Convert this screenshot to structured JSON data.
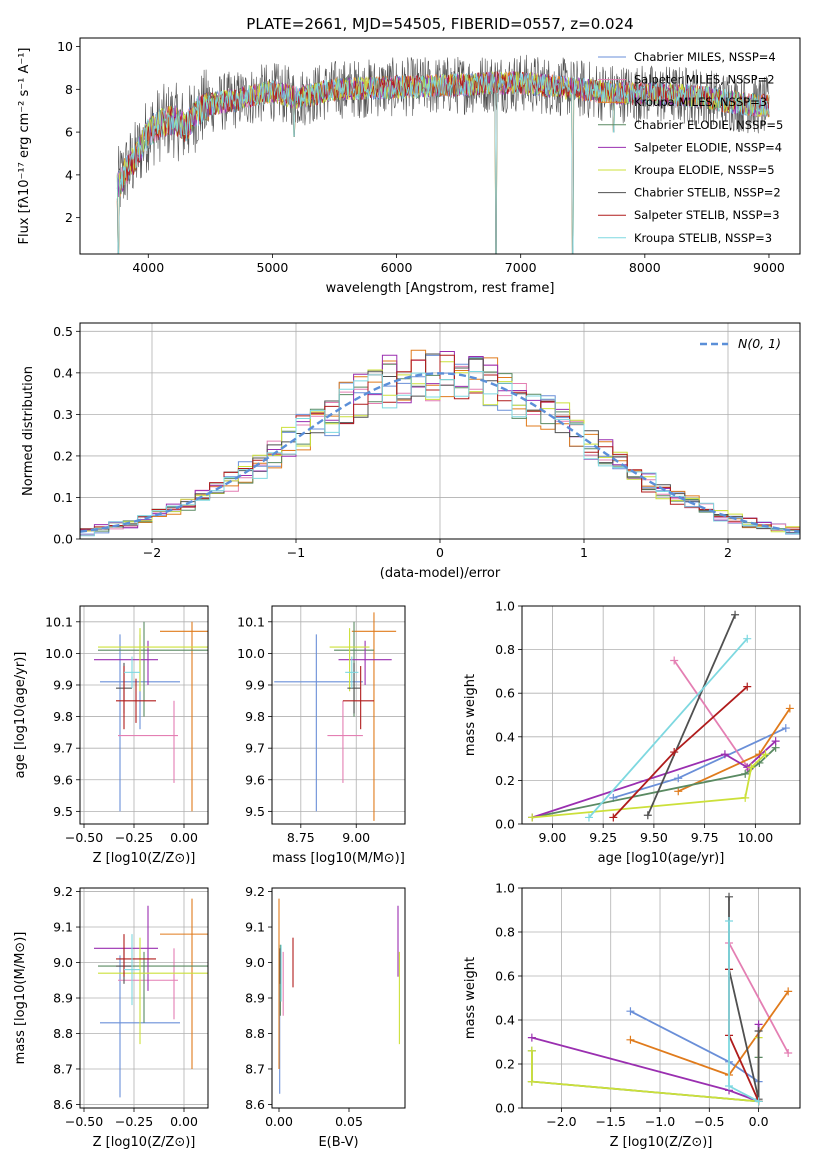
{
  "figure_title": "PLATE=2661, MJD=54505, FIBERID=0557, z=0.024",
  "colors": {
    "chabrier_miles": "#6a8fd8",
    "salpeter_miles": "#e47fb3",
    "kroupa_miles": "#e07b1c",
    "chabrier_elodie": "#5a8a62",
    "salpeter_elodie": "#9a2fb0",
    "kroupa_elodie": "#cce03a",
    "chabrier_stelib": "#505050",
    "salpeter_stelib": "#b01c1c",
    "kroupa_stelib": "#7ed8e0",
    "normal": "#5b8fd8"
  },
  "chart_data": [
    {
      "id": "spectrum",
      "type": "line",
      "xlabel": "wavelength [Angstrom, rest frame]",
      "ylabel": "Flux [fλ10⁻¹⁷ erg cm⁻² s⁻¹ A⁻¹]",
      "xlim": [
        3450,
        9250
      ],
      "ylim": [
        0.3,
        10.4
      ],
      "xticks": [
        4000,
        5000,
        6000,
        7000,
        8000,
        9000
      ],
      "yticks": [
        2,
        4,
        6,
        8,
        10
      ],
      "legend_position": "upper-right",
      "series": [
        {
          "name": "Chabrier MILES, NSSP=4",
          "color": "chabrier_miles"
        },
        {
          "name": "Salpeter MILES, NSSP=2",
          "color": "salpeter_miles"
        },
        {
          "name": "Kroupa MILES, NSSP=3",
          "color": "kroupa_miles"
        },
        {
          "name": "Chabrier ELODIE, NSSP=5",
          "color": "chabrier_elodie"
        },
        {
          "name": "Salpeter ELODIE, NSSP=4",
          "color": "salpeter_elodie"
        },
        {
          "name": "Kroupa ELODIE, NSSP=5",
          "color": "kroupa_elodie"
        },
        {
          "name": "Chabrier STELIB, NSSP=2",
          "color": "chabrier_stelib"
        },
        {
          "name": "Salpeter STELIB, NSSP=3",
          "color": "salpeter_stelib"
        },
        {
          "name": "Kroupa STELIB, NSSP=3",
          "color": "kroupa_stelib"
        }
      ],
      "continuum": [
        [
          3750,
          3.4
        ],
        [
          3800,
          4.0
        ],
        [
          3900,
          4.8
        ],
        [
          4000,
          6.0
        ],
        [
          4100,
          6.4
        ],
        [
          4200,
          6.6
        ],
        [
          4300,
          6.2
        ],
        [
          4400,
          7.0
        ],
        [
          4500,
          7.3
        ],
        [
          4700,
          7.5
        ],
        [
          5000,
          7.9
        ],
        [
          5200,
          7.6
        ],
        [
          5500,
          8.0
        ],
        [
          6000,
          8.1
        ],
        [
          6500,
          8.2
        ],
        [
          6800,
          8.3
        ],
        [
          7000,
          8.3
        ],
        [
          7500,
          8.0
        ],
        [
          7800,
          7.8
        ],
        [
          8000,
          7.8
        ],
        [
          8400,
          7.7
        ],
        [
          8700,
          7.4
        ],
        [
          9000,
          7.2
        ]
      ],
      "absorption_dips": [
        {
          "x": 3760,
          "y": 0.3
        },
        {
          "x": 5175,
          "y": 5.8
        },
        {
          "x": 6800,
          "y": 0.3
        },
        {
          "x": 7420,
          "y": 0.3
        },
        {
          "x": 7750,
          "y": 6.0
        }
      ]
    },
    {
      "id": "residuals",
      "type": "line",
      "xlabel": "(data-model)/error",
      "ylabel": "Normed distribution",
      "xlim": [
        -2.5,
        2.5
      ],
      "ylim": [
        0,
        0.52
      ],
      "xticks": [
        -2,
        -1,
        0,
        1,
        2
      ],
      "yticks": [
        0.0,
        0.1,
        0.2,
        0.3,
        0.4,
        0.5
      ],
      "grid": true,
      "legend_position": "upper-right",
      "normal_label": "N(0, 1)",
      "bins": 50
    },
    {
      "id": "age_vs_Z",
      "type": "scatter",
      "xlabel": "Z [log10(Z/Z⊙)]",
      "ylabel": "age  [log10(age/yr)]",
      "xlim": [
        -0.52,
        0.12
      ],
      "ylim": [
        9.46,
        10.15
      ],
      "xticks": [
        -0.5,
        -0.25,
        0.0
      ],
      "yticks": [
        9.5,
        9.6,
        9.7,
        9.8,
        9.9,
        10.0,
        10.1
      ],
      "grid": true,
      "points": [
        {
          "color": "chabrier_miles",
          "x": -0.22,
          "xerr": 0.2,
          "y": 9.91,
          "yerr": 0.15
        },
        {
          "color": "chabrier_miles",
          "x": -0.32,
          "xerr": 0.01,
          "y": 9.78,
          "yerr": 0.28
        },
        {
          "color": "salpeter_miles",
          "x": -0.18,
          "xerr": 0.15,
          "y": 9.74,
          "yerr": 0.01
        },
        {
          "color": "salpeter_miles",
          "x": -0.05,
          "xerr": 0.01,
          "y": 9.72,
          "yerr": 0.13
        },
        {
          "color": "kroupa_miles",
          "x": 0.0,
          "xerr": 0.12,
          "y": 10.07,
          "yerr": 0.01
        },
        {
          "color": "kroupa_miles",
          "x": 0.04,
          "xerr": 0.01,
          "y": 9.8,
          "yerr": 0.3
        },
        {
          "color": "chabrier_elodie",
          "x": -0.15,
          "xerr": 0.28,
          "y": 10.01,
          "yerr": 0.01
        },
        {
          "color": "chabrier_elodie",
          "x": -0.2,
          "xerr": 0.01,
          "y": 9.95,
          "yerr": 0.15
        },
        {
          "color": "salpeter_elodie",
          "x": -0.29,
          "xerr": 0.16,
          "y": 9.98,
          "yerr": 0.01
        },
        {
          "color": "salpeter_elodie",
          "x": -0.18,
          "xerr": 0.01,
          "y": 9.97,
          "yerr": 0.07
        },
        {
          "color": "kroupa_elodie",
          "x": -0.15,
          "xerr": 0.28,
          "y": 10.02,
          "yerr": 0.01
        },
        {
          "color": "kroupa_elodie",
          "x": -0.22,
          "xerr": 0.01,
          "y": 9.98,
          "yerr": 0.1
        },
        {
          "color": "chabrier_stelib",
          "x": -0.3,
          "xerr": 0.04,
          "y": 9.89,
          "yerr": 0.08
        },
        {
          "color": "salpeter_stelib",
          "x": -0.24,
          "xerr": 0.1,
          "y": 9.85,
          "yerr": 0.07
        },
        {
          "color": "salpeter_stelib",
          "x": -0.3,
          "xerr": 0.01,
          "y": 9.86,
          "yerr": 0.1
        },
        {
          "color": "kroupa_stelib",
          "x": -0.26,
          "xerr": 0.04,
          "y": 9.94,
          "yerr": 0.05
        }
      ]
    },
    {
      "id": "age_vs_mass",
      "type": "scatter",
      "xlabel": "mass [log10(M/M⊙)]",
      "xlim": [
        8.62,
        9.22
      ],
      "ylim": [
        9.46,
        10.15
      ],
      "xticks": [
        8.75,
        9.0
      ],
      "yticks": [
        9.5,
        9.6,
        9.7,
        9.8,
        9.9,
        10.0,
        10.1
      ],
      "grid": true,
      "points": [
        {
          "color": "chabrier_miles",
          "x": 8.83,
          "xerr": 0.2,
          "y": 9.91,
          "yerr": 0.01
        },
        {
          "color": "chabrier_miles",
          "x": 8.82,
          "xerr": 0.01,
          "y": 9.78,
          "yerr": 0.28
        },
        {
          "color": "salpeter_miles",
          "x": 8.95,
          "xerr": 0.08,
          "y": 9.74,
          "yerr": 0.01
        },
        {
          "color": "salpeter_miles",
          "x": 8.94,
          "xerr": 0.01,
          "y": 9.72,
          "yerr": 0.13
        },
        {
          "color": "kroupa_miles",
          "x": 9.08,
          "xerr": 0.1,
          "y": 10.07,
          "yerr": 0.01
        },
        {
          "color": "kroupa_miles",
          "x": 9.08,
          "xerr": 0.01,
          "y": 9.8,
          "yerr": 0.33
        },
        {
          "color": "chabrier_elodie",
          "x": 8.99,
          "xerr": 0.09,
          "y": 10.01,
          "yerr": 0.01
        },
        {
          "color": "chabrier_elodie",
          "x": 8.99,
          "xerr": 0.01,
          "y": 9.95,
          "yerr": 0.15
        },
        {
          "color": "salpeter_elodie",
          "x": 9.04,
          "xerr": 0.12,
          "y": 9.98,
          "yerr": 0.01
        },
        {
          "color": "salpeter_elodie",
          "x": 9.04,
          "xerr": 0.01,
          "y": 9.97,
          "yerr": 0.07
        },
        {
          "color": "kroupa_elodie",
          "x": 8.97,
          "xerr": 0.09,
          "y": 10.02,
          "yerr": 0.01
        },
        {
          "color": "kroupa_elodie",
          "x": 8.97,
          "xerr": 0.01,
          "y": 9.98,
          "yerr": 0.1
        },
        {
          "color": "chabrier_stelib",
          "x": 8.99,
          "xerr": 0.03,
          "y": 9.89,
          "yerr": 0.08
        },
        {
          "color": "salpeter_stelib",
          "x": 9.01,
          "xerr": 0.07,
          "y": 9.85,
          "yerr": 0.01
        },
        {
          "color": "salpeter_stelib",
          "x": 9.02,
          "xerr": 0.01,
          "y": 9.86,
          "yerr": 0.1
        },
        {
          "color": "kroupa_stelib",
          "x": 8.98,
          "xerr": 0.03,
          "y": 9.94,
          "yerr": 0.05
        }
      ]
    },
    {
      "id": "weight_vs_age",
      "type": "line",
      "xlabel": "age  [log10(age/yr)]",
      "ylabel": "mass weight",
      "xlim": [
        8.85,
        10.22
      ],
      "ylim": [
        0.0,
        1.0
      ],
      "xticks": [
        9.0,
        9.25,
        9.5,
        9.75,
        10.0
      ],
      "yticks": [
        0.0,
        0.2,
        0.4,
        0.6,
        0.8,
        1.0
      ],
      "grid": true,
      "series": [
        {
          "color": "chabrier_miles",
          "x": [
            9.3,
            9.62,
            10.15
          ],
          "y": [
            0.12,
            0.21,
            0.44
          ]
        },
        {
          "color": "salpeter_miles",
          "x": [
            9.6,
            9.97
          ],
          "y": [
            0.75,
            0.25
          ]
        },
        {
          "color": "kroupa_miles",
          "x": [
            9.62,
            10.02,
            10.17
          ],
          "y": [
            0.15,
            0.32,
            0.53
          ]
        },
        {
          "color": "chabrier_elodie",
          "x": [
            8.9,
            9.95,
            10.02,
            10.1
          ],
          "y": [
            0.03,
            0.23,
            0.28,
            0.35
          ]
        },
        {
          "color": "salpeter_elodie",
          "x": [
            8.9,
            9.85,
            9.96,
            10.1
          ],
          "y": [
            0.03,
            0.32,
            0.26,
            0.38
          ]
        },
        {
          "color": "kroupa_elodie",
          "x": [
            8.9,
            9.95,
            9.98,
            10.05
          ],
          "y": [
            0.03,
            0.12,
            0.26,
            0.32
          ]
        },
        {
          "color": "chabrier_stelib",
          "x": [
            9.47,
            9.9
          ],
          "y": [
            0.04,
            0.96
          ]
        },
        {
          "color": "salpeter_stelib",
          "x": [
            9.3,
            9.6,
            9.96
          ],
          "y": [
            0.03,
            0.33,
            0.63
          ]
        },
        {
          "color": "kroupa_stelib",
          "x": [
            9.18,
            9.96
          ],
          "y": [
            0.03,
            0.85
          ]
        }
      ]
    },
    {
      "id": "mass_vs_Z",
      "type": "scatter",
      "xlabel": "Z [log10(Z/Z⊙)]",
      "ylabel": "mass [log10(M/M⊙)]",
      "xlim": [
        -0.52,
        0.12
      ],
      "ylim": [
        8.59,
        9.21
      ],
      "xticks": [
        -0.5,
        -0.25,
        0.0
      ],
      "yticks": [
        8.6,
        8.7,
        8.8,
        8.9,
        9.0,
        9.1,
        9.2
      ],
      "grid": true,
      "points": [
        {
          "color": "chabrier_miles",
          "x": -0.22,
          "xerr": 0.2,
          "y": 8.83,
          "yerr": 0.01
        },
        {
          "color": "chabrier_miles",
          "x": -0.32,
          "xerr": 0.01,
          "y": 8.82,
          "yerr": 0.2
        },
        {
          "color": "salpeter_miles",
          "x": -0.18,
          "xerr": 0.15,
          "y": 8.95,
          "yerr": 0.01
        },
        {
          "color": "salpeter_miles",
          "x": -0.05,
          "xerr": 0.01,
          "y": 8.94,
          "yerr": 0.1
        },
        {
          "color": "kroupa_miles",
          "x": 0.0,
          "xerr": 0.12,
          "y": 9.08,
          "yerr": 0.01
        },
        {
          "color": "kroupa_miles",
          "x": 0.04,
          "xerr": 0.01,
          "y": 8.94,
          "yerr": 0.24
        },
        {
          "color": "chabrier_elodie",
          "x": -0.15,
          "xerr": 0.28,
          "y": 8.99,
          "yerr": 0.01
        },
        {
          "color": "chabrier_elodie",
          "x": -0.2,
          "xerr": 0.01,
          "y": 8.93,
          "yerr": 0.1
        },
        {
          "color": "salpeter_elodie",
          "x": -0.29,
          "xerr": 0.16,
          "y": 9.04,
          "yerr": 0.01
        },
        {
          "color": "salpeter_elodie",
          "x": -0.18,
          "xerr": 0.01,
          "y": 9.04,
          "yerr": 0.12
        },
        {
          "color": "kroupa_elodie",
          "x": -0.15,
          "xerr": 0.28,
          "y": 8.97,
          "yerr": 0.01
        },
        {
          "color": "kroupa_elodie",
          "x": -0.22,
          "xerr": 0.01,
          "y": 8.92,
          "yerr": 0.15
        },
        {
          "color": "chabrier_stelib",
          "x": -0.3,
          "xerr": 0.04,
          "y": 8.99,
          "yerr": 0.05
        },
        {
          "color": "salpeter_stelib",
          "x": -0.24,
          "xerr": 0.1,
          "y": 9.01,
          "yerr": 0.01
        },
        {
          "color": "salpeter_stelib",
          "x": -0.3,
          "xerr": 0.01,
          "y": 9.02,
          "yerr": 0.06
        },
        {
          "color": "kroupa_stelib",
          "x": -0.26,
          "xerr": 0.04,
          "y": 8.98,
          "yerr": 0.1
        }
      ]
    },
    {
      "id": "mass_vs_ebv",
      "type": "scatter",
      "xlabel": "E(B-V)",
      "xlim": [
        -0.005,
        0.09
      ],
      "ylim": [
        8.59,
        9.21
      ],
      "xticks": [
        0.0,
        0.05
      ],
      "yticks": [
        8.6,
        8.7,
        8.8,
        8.9,
        9.0,
        9.1,
        9.2
      ],
      "points": [
        {
          "color": "chabrier_miles",
          "x": 0.0005,
          "xerr": 0,
          "y": 8.83,
          "yerr": 0.2
        },
        {
          "color": "salpeter_miles",
          "x": 0.003,
          "xerr": 0,
          "y": 8.94,
          "yerr": 0.09
        },
        {
          "color": "kroupa_miles",
          "x": 0.0,
          "xerr": 0,
          "y": 8.94,
          "yerr": 0.24
        },
        {
          "color": "chabrier_elodie",
          "x": 0.001,
          "xerr": 0,
          "y": 8.95,
          "yerr": 0.1
        },
        {
          "color": "salpeter_elodie",
          "x": 0.085,
          "xerr": 0,
          "y": 9.06,
          "yerr": 0.1
        },
        {
          "color": "kroupa_elodie",
          "x": 0.086,
          "xerr": 0,
          "y": 8.9,
          "yerr": 0.13
        },
        {
          "color": "chabrier_stelib",
          "x": 0.0008,
          "xerr": 0,
          "y": 8.99,
          "yerr": 0.05
        },
        {
          "color": "salpeter_stelib",
          "x": 0.01,
          "xerr": 0,
          "y": 9.0,
          "yerr": 0.07
        },
        {
          "color": "kroupa_stelib",
          "x": 0.0015,
          "xerr": 0,
          "y": 8.97,
          "yerr": 0.08
        }
      ]
    },
    {
      "id": "weight_vs_Z",
      "type": "line",
      "xlabel": "Z [log10(Z/Z⊙)]",
      "ylabel": "mass weight",
      "xlim": [
        -2.4,
        0.42
      ],
      "ylim": [
        0.0,
        1.0
      ],
      "xticks": [
        -2.0,
        -1.5,
        -1.0,
        -0.5,
        0.0
      ],
      "yticks": [
        0.0,
        0.2,
        0.4,
        0.6,
        0.8,
        1.0
      ],
      "grid": true,
      "series": [
        {
          "color": "chabrier_miles",
          "x": [
            -1.3,
            -0.3,
            0.0
          ],
          "y": [
            0.44,
            0.21,
            0.12
          ]
        },
        {
          "color": "salpeter_miles",
          "x": [
            -0.3,
            0.3
          ],
          "y": [
            0.75,
            0.25
          ]
        },
        {
          "color": "kroupa_miles",
          "x": [
            -1.3,
            -0.3,
            0.3
          ],
          "y": [
            0.31,
            0.15,
            0.53
          ]
        },
        {
          "color": "chabrier_elodie",
          "x": [
            -2.3,
            -2.3,
            0.0,
            0.0
          ],
          "y": [
            0.26,
            0.12,
            0.03,
            0.23
          ]
        },
        {
          "color": "salpeter_elodie",
          "x": [
            -2.3,
            -0.3,
            0.0,
            0.0
          ],
          "y": [
            0.32,
            0.08,
            0.03,
            0.38
          ]
        },
        {
          "color": "kroupa_elodie",
          "x": [
            -2.3,
            -2.3,
            0.0,
            0.0
          ],
          "y": [
            0.26,
            0.12,
            0.03,
            0.32
          ]
        },
        {
          "color": "chabrier_stelib",
          "x": [
            -0.3,
            -0.3,
            0.0,
            0.0
          ],
          "y": [
            0.96,
            0.63,
            0.04,
            0.35
          ]
        },
        {
          "color": "salpeter_stelib",
          "x": [
            -0.3,
            -0.3,
            0.0
          ],
          "y": [
            0.63,
            0.33,
            0.03
          ]
        },
        {
          "color": "kroupa_stelib",
          "x": [
            -0.3,
            -0.3,
            0.0
          ],
          "y": [
            0.85,
            0.1,
            0.03
          ]
        }
      ]
    }
  ]
}
